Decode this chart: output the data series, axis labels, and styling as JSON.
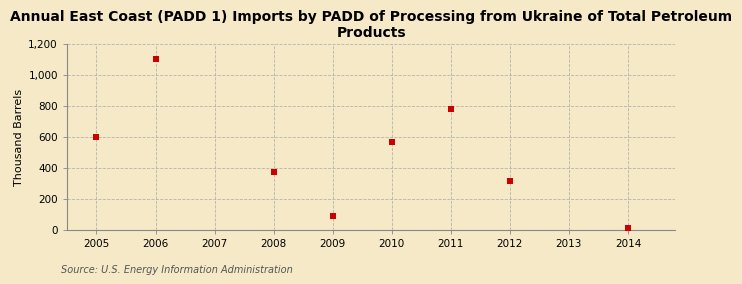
{
  "title": "Annual East Coast (PADD 1) Imports by PADD of Processing from Ukraine of Total Petroleum\nProducts",
  "ylabel": "Thousand Barrels",
  "source": "Source: U.S. Energy Information Administration",
  "background_color": "#f5e9c8",
  "plot_background_color": "#f5e9c8",
  "x_data": [
    2005,
    2006,
    2008,
    2009,
    2010,
    2011,
    2012,
    2014
  ],
  "y_data": [
    600,
    1100,
    370,
    85,
    565,
    775,
    310,
    10
  ],
  "marker_color": "#cc0000",
  "marker": "s",
  "marker_size": 4,
  "xlim": [
    2004.5,
    2014.8
  ],
  "ylim": [
    0,
    1200
  ],
  "yticks": [
    0,
    200,
    400,
    600,
    800,
    1000,
    1200
  ],
  "xticks": [
    2005,
    2006,
    2007,
    2008,
    2009,
    2010,
    2011,
    2012,
    2013,
    2014
  ],
  "grid_color": "#aaaaaa",
  "grid_style": "--",
  "title_fontsize": 10,
  "axis_fontsize": 8,
  "tick_fontsize": 7.5,
  "source_fontsize": 7
}
